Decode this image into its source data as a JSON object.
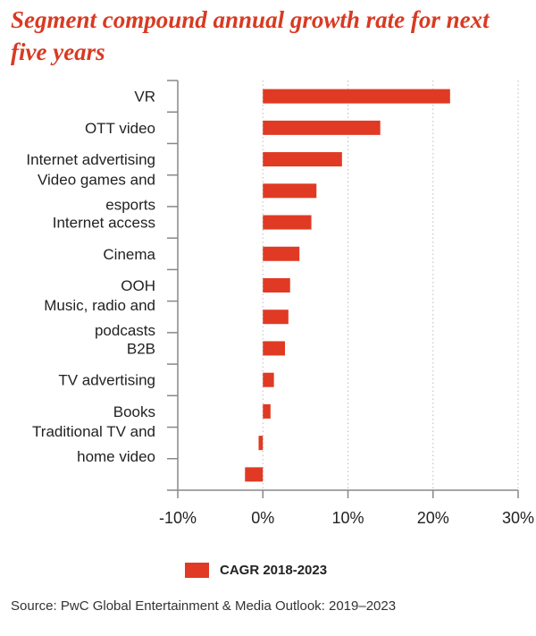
{
  "title": "Segment compound annual growth rate for next five years",
  "legend": {
    "label": "CAGR 2018-2023"
  },
  "source": "Source: PwC Global Entertainment & Media Outlook: 2019–2023",
  "colors": {
    "bar": "#e03a24",
    "axis": "#888888",
    "grid": "#bbbbbb",
    "title": "#d93a22"
  },
  "chart_data": {
    "type": "bar",
    "orientation": "horizontal",
    "categories": [
      "VR",
      "OTT video",
      "Internet advertising",
      "Video games and esports",
      "Internet access",
      "Cinema",
      "OOH",
      "Music, radio and podcasts",
      "B2B",
      "TV advertising",
      "Books",
      "Traditional TV and home video",
      ""
    ],
    "series": [
      {
        "name": "CAGR 2018-2023",
        "values": [
          22.0,
          13.8,
          9.3,
          6.3,
          5.7,
          4.3,
          3.2,
          3.0,
          2.6,
          1.3,
          0.9,
          -0.5,
          -2.1
        ]
      }
    ],
    "xlim": [
      -10,
      30
    ],
    "ticks": [
      -10,
      0,
      10,
      20,
      30
    ],
    "tick_labels": [
      "-10%",
      "0%",
      "10%",
      "20%",
      "30%"
    ],
    "xlabel": "",
    "ylabel": "",
    "grid": true,
    "legend_position": "bottom"
  }
}
